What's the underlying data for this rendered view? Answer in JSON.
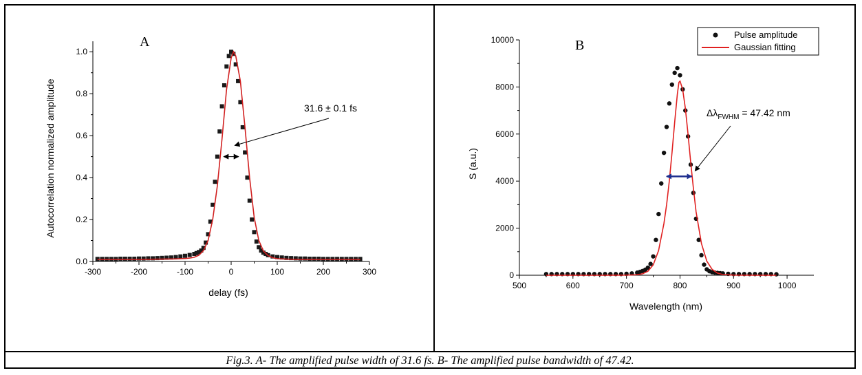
{
  "caption": "Fig.3. A- The amplified pulse width of 31.6 fs. B- The amplified pulse bandwidth of 47.42.",
  "chart_data": [
    {
      "type": "scatter",
      "panel_label": "A",
      "xlabel": "delay (fs)",
      "ylabel": "Autocorrelation normalized amplitude",
      "xlim": [
        -300,
        300
      ],
      "ylim": [
        0,
        1.05
      ],
      "xticks": [
        -300,
        -200,
        -100,
        0,
        100,
        200,
        300
      ],
      "yticks": [
        "0.0",
        "0.2",
        "0.4",
        "0.6",
        "0.8",
        "1.0"
      ],
      "annotation": "31.6 ± 0.1 fs",
      "fwhm_arrow": {
        "x_from": -16,
        "x_to": 16,
        "y": 0.5,
        "unit": "fs"
      },
      "series": [
        {
          "style": "square-markers",
          "color": "#1a1a1a",
          "x": [
            -290,
            -280,
            -270,
            -260,
            -250,
            -240,
            -230,
            -220,
            -210,
            -200,
            -190,
            -180,
            -170,
            -160,
            -150,
            -140,
            -130,
            -120,
            -110,
            -100,
            -90,
            -80,
            -75,
            -70,
            -65,
            -60,
            -55,
            -50,
            -45,
            -40,
            -35,
            -30,
            -25,
            -20,
            -15,
            -10,
            -5,
            0,
            5,
            10,
            15,
            20,
            25,
            30,
            35,
            40,
            45,
            50,
            55,
            60,
            65,
            70,
            75,
            80,
            90,
            100,
            110,
            120,
            130,
            140,
            150,
            160,
            170,
            180,
            190,
            200,
            210,
            220,
            230,
            240,
            250,
            260,
            270,
            280
          ],
          "y": [
            0.012,
            0.012,
            0.012,
            0.012,
            0.012,
            0.013,
            0.013,
            0.013,
            0.013,
            0.014,
            0.014,
            0.015,
            0.015,
            0.016,
            0.017,
            0.018,
            0.019,
            0.021,
            0.024,
            0.027,
            0.031,
            0.036,
            0.04,
            0.045,
            0.052,
            0.065,
            0.09,
            0.13,
            0.19,
            0.27,
            0.38,
            0.5,
            0.62,
            0.74,
            0.84,
            0.93,
            0.98,
            1.0,
            0.99,
            0.94,
            0.86,
            0.76,
            0.64,
            0.52,
            0.4,
            0.29,
            0.2,
            0.14,
            0.095,
            0.068,
            0.052,
            0.042,
            0.036,
            0.03,
            0.024,
            0.021,
            0.019,
            0.017,
            0.016,
            0.015,
            0.014,
            0.014,
            0.013,
            0.013,
            0.013,
            0.012,
            0.012,
            0.012,
            0.012,
            0.012,
            0.012,
            0.012,
            0.012,
            0.012
          ]
        },
        {
          "style": "line",
          "color": "#d11f1f",
          "x": [
            -290,
            -200,
            -150,
            -120,
            -100,
            -90,
            -80,
            -70,
            -60,
            -50,
            -40,
            -30,
            -20,
            -10,
            0,
            5,
            10,
            20,
            30,
            40,
            50,
            60,
            70,
            80,
            90,
            100,
            120,
            150,
            200,
            280
          ],
          "y": [
            0.01,
            0.01,
            0.011,
            0.012,
            0.014,
            0.016,
            0.02,
            0.03,
            0.052,
            0.1,
            0.2,
            0.36,
            0.58,
            0.82,
            0.97,
            1.0,
            0.98,
            0.86,
            0.64,
            0.4,
            0.21,
            0.1,
            0.05,
            0.028,
            0.018,
            0.013,
            0.011,
            0.01,
            0.01,
            0.01
          ]
        }
      ]
    },
    {
      "type": "scatter",
      "panel_label": "B",
      "xlabel": "Wavelength (nm)",
      "ylabel": "S (a.u.)",
      "xlim": [
        500,
        1050
      ],
      "ylim": [
        0,
        10000
      ],
      "xticks": [
        500,
        600,
        700,
        800,
        900,
        1000
      ],
      "yticks": [
        0,
        2000,
        4000,
        6000,
        8000,
        10000
      ],
      "annotation_prefix": "Δλ",
      "annotation_sub": "FWHM",
      "annotation_suffix": " = 47.42 nm",
      "fwhm_arrow": {
        "x_from": 775,
        "x_to": 822,
        "y": 4200,
        "unit": "nm",
        "color": "#1f2f8f"
      },
      "legend": {
        "position": "top-right",
        "entries": [
          "Pulse amplitude",
          "Gaussian fitting"
        ]
      },
      "series": [
        {
          "name": "Pulse amplitude",
          "style": "circle-markers",
          "color": "#111111",
          "x": [
            550,
            560,
            570,
            580,
            590,
            600,
            610,
            620,
            630,
            640,
            650,
            660,
            670,
            680,
            690,
            700,
            710,
            720,
            725,
            730,
            735,
            740,
            745,
            750,
            755,
            760,
            765,
            770,
            775,
            780,
            785,
            790,
            795,
            800,
            805,
            810,
            815,
            820,
            825,
            830,
            835,
            840,
            845,
            850,
            855,
            860,
            865,
            870,
            875,
            880,
            890,
            900,
            910,
            920,
            930,
            940,
            950,
            960,
            970,
            980
          ],
          "y": [
            50,
            50,
            50,
            50,
            50,
            50,
            50,
            50,
            50,
            50,
            50,
            50,
            50,
            50,
            50,
            60,
            80,
            110,
            140,
            180,
            230,
            320,
            480,
            800,
            1500,
            2600,
            3900,
            5200,
            6300,
            7300,
            8100,
            8600,
            8800,
            8500,
            7900,
            7000,
            5900,
            4700,
            3500,
            2400,
            1500,
            850,
            450,
            250,
            170,
            130,
            110,
            100,
            90,
            80,
            60,
            50,
            50,
            50,
            50,
            50,
            50,
            50,
            50,
            40
          ]
        },
        {
          "name": "Gaussian fitting",
          "style": "line",
          "color": "#e02020",
          "x": [
            550,
            600,
            650,
            700,
            720,
            730,
            740,
            750,
            760,
            770,
            775,
            780,
            785,
            790,
            795,
            798,
            800,
            805,
            810,
            815,
            820,
            825,
            830,
            840,
            850,
            860,
            870,
            880,
            900,
            950,
            980
          ],
          "y": [
            0,
            0,
            0,
            5,
            20,
            60,
            170,
            440,
            1050,
            2200,
            3000,
            4000,
            5200,
            6500,
            7700,
            8200,
            8250,
            7900,
            7100,
            6000,
            4800,
            3700,
            2700,
            1350,
            600,
            250,
            90,
            30,
            5,
            0,
            0
          ]
        }
      ]
    }
  ]
}
